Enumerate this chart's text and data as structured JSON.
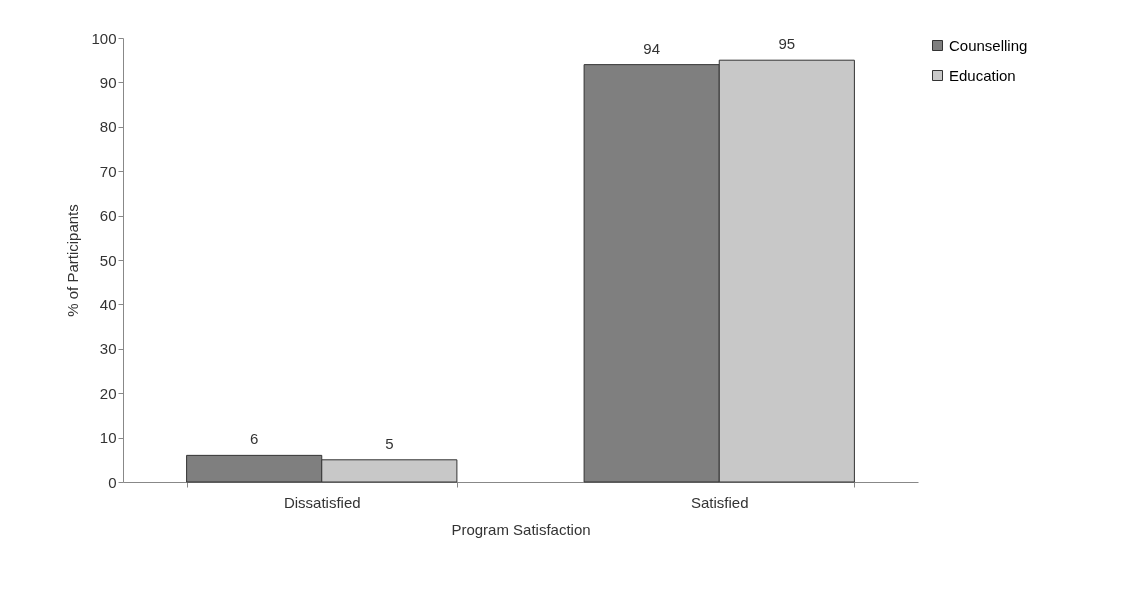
{
  "chart_data": {
    "type": "bar",
    "xlabel": "Program Satisfaction",
    "ylabel": "% of Participants",
    "categories": [
      "Dissatisfied",
      "Satisfied"
    ],
    "series": [
      {
        "name": "Counselling",
        "color": "#7f7f7f",
        "values": [
          6,
          94
        ]
      },
      {
        "name": "Education",
        "color": "#c8c8c8",
        "values": [
          5,
          95
        ]
      }
    ],
    "ylim": [
      0,
      100
    ],
    "yticks": [
      0,
      10,
      20,
      30,
      40,
      50,
      60,
      70,
      80,
      90,
      100
    ],
    "grid": false,
    "legend": "top right",
    "data_labels": true
  }
}
